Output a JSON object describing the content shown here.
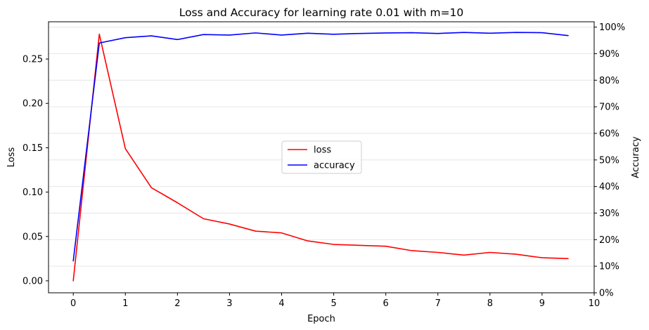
{
  "chart_data": {
    "type": "line",
    "title": "Loss and Accuracy for learning rate 0.01 with m=10",
    "xlabel": "Epoch",
    "ylabel": "Loss",
    "y2label": "Accuracy",
    "xlim": [
      -0.475,
      10
    ],
    "ylim": [
      -0.0135,
      0.292
    ],
    "y2lim": [
      0,
      1.02
    ],
    "xticks": [
      0,
      1,
      2,
      3,
      4,
      5,
      6,
      7,
      8,
      9,
      10
    ],
    "yticks": [
      0.0,
      0.05,
      0.1,
      0.15,
      0.2,
      0.25
    ],
    "ytick_labels": [
      "0.00",
      "0.05",
      "0.10",
      "0.15",
      "0.20",
      "0.25"
    ],
    "y2ticks": [
      0,
      0.1,
      0.2,
      0.3,
      0.4,
      0.5,
      0.6,
      0.7,
      0.8,
      0.9,
      1.0
    ],
    "y2tick_labels": [
      "0%",
      "10%",
      "20%",
      "30%",
      "40%",
      "50%",
      "60%",
      "70%",
      "80%",
      "90%",
      "100%"
    ],
    "grid": "horizontal, right axis",
    "legend_position": "center",
    "x": [
      0,
      0.5,
      1,
      1.5,
      2,
      2.5,
      3,
      3.5,
      4,
      4.5,
      5,
      5.5,
      6,
      6.5,
      7,
      7.5,
      8,
      8.5,
      9,
      9.5
    ],
    "series": [
      {
        "name": "loss",
        "axis": "left",
        "color": "#ff0000",
        "values": [
          0.0,
          0.278,
          0.149,
          0.105,
          0.088,
          0.07,
          0.064,
          0.056,
          0.054,
          0.045,
          0.041,
          0.04,
          0.039,
          0.034,
          0.032,
          0.029,
          0.032,
          0.03,
          0.026,
          0.025
        ]
      },
      {
        "name": "accuracy",
        "axis": "right",
        "color": "#0000ff",
        "values": [
          0.12,
          0.94,
          0.96,
          0.967,
          0.953,
          0.972,
          0.97,
          0.978,
          0.97,
          0.977,
          0.973,
          0.976,
          0.978,
          0.979,
          0.976,
          0.98,
          0.977,
          0.98,
          0.979,
          0.968
        ]
      }
    ]
  }
}
